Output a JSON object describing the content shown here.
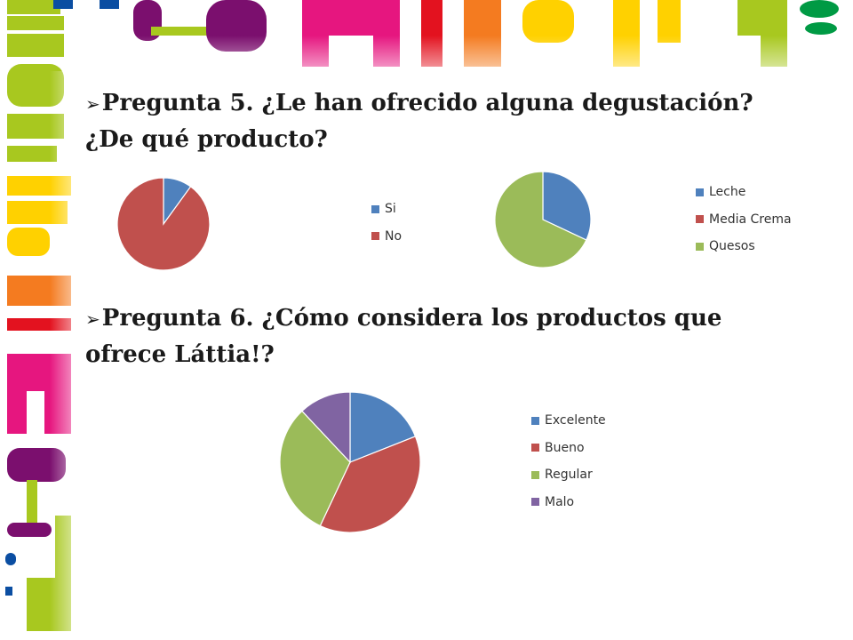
{
  "slide": {
    "heading_q5": "Pregunta 5. ¿Le han ofrecido alguna degustación? ¿De qué producto?",
    "heading_q6": "Pregunta 6. ¿Cómo considera los productos que ofrece Láttia!?",
    "bullet_glyph": "➢"
  },
  "decor_colors": [
    "#a8c81f",
    "#7b0f6e",
    "#e6167f",
    "#e3121f",
    "#f47b20",
    "#ffd100",
    "#0b4ea2",
    "#009a44"
  ],
  "chart_data": [
    {
      "type": "pie",
      "title": "",
      "categories": [
        "Si",
        "No"
      ],
      "values": [
        10,
        90
      ],
      "colors": [
        "#4f81bd",
        "#c0504d"
      ],
      "legend": "right"
    },
    {
      "type": "pie",
      "title": "",
      "categories": [
        "Leche",
        "Media Crema",
        "Quesos"
      ],
      "values": [
        32,
        0,
        68
      ],
      "colors": [
        "#4f81bd",
        "#c0504d",
        "#9bbb59"
      ],
      "legend": "right"
    },
    {
      "type": "pie",
      "title": "",
      "categories": [
        "Excelente",
        "Bueno",
        "Regular",
        "Malo"
      ],
      "values": [
        19,
        38,
        31,
        12
      ],
      "colors": [
        "#4f81bd",
        "#c0504d",
        "#9bbb59",
        "#8064a2"
      ],
      "legend": "right"
    }
  ]
}
